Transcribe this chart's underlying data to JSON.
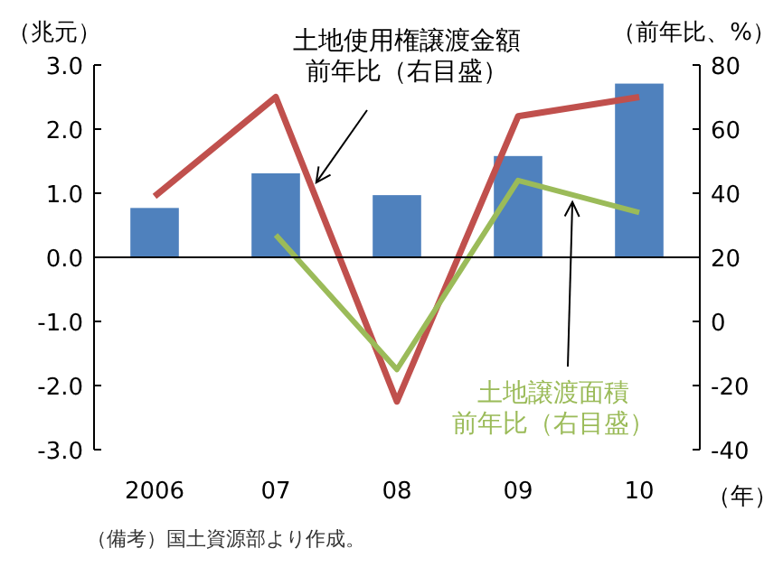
{
  "chart_data": {
    "type": "bar",
    "categories": [
      "2006",
      "07",
      "08",
      "09",
      "10"
    ],
    "series": [
      {
        "color": "#4f81bd",
        "values": [
          0.77,
          1.31,
          0.97,
          1.58,
          2.71
        ]
      },
      {
        "type": "line",
        "name": "土地使用権譲渡金額前年比（右目盛）",
        "color": "#c0504d",
        "axis": "y2",
        "values": [
          39,
          70,
          -25,
          64,
          70
        ]
      },
      {
        "type": "line",
        "name": "土地譲渡面積前年比（右目盛）",
        "color": "#9bbb59",
        "axis": "y2",
        "values": [
          null,
          27,
          -15,
          44,
          34
        ]
      }
    ],
    "ylabel": "（兆元）",
    "y2label": "（前年比、%）",
    "xlabel": "（年）",
    "ylim": [
      -3,
      3
    ],
    "yticks": [
      {
        "value": 3,
        "label": "3.0"
      },
      {
        "value": 2,
        "label": "2.0"
      },
      {
        "value": 1,
        "label": "1.0"
      },
      {
        "value": 0,
        "label": "0.0"
      },
      {
        "value": -1,
        "label": "-1.0"
      },
      {
        "value": -2,
        "label": "-2.0"
      },
      {
        "value": -3,
        "label": "-3.0"
      }
    ],
    "y2lim": [
      -40,
      80
    ],
    "y2ticks": [
      80,
      60,
      40,
      20,
      0,
      -20,
      -40
    ],
    "annotations": [
      "（備考）国土資源部より作成。"
    ]
  }
}
